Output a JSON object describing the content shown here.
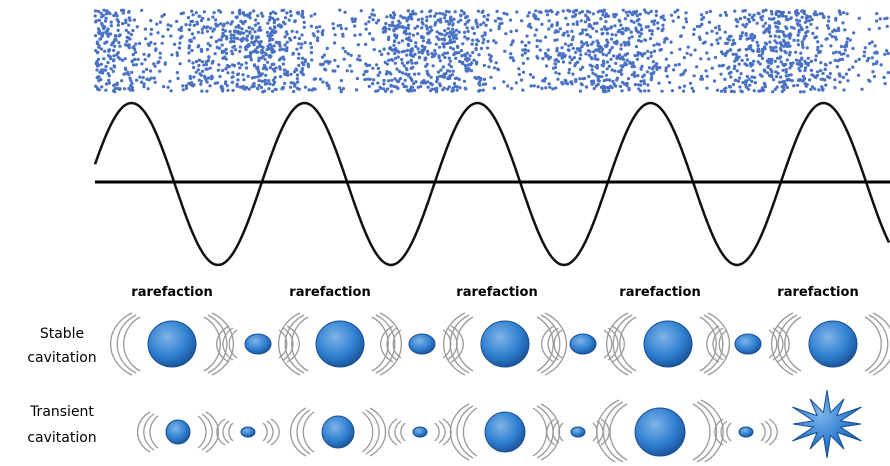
{
  "rarefaction_labels": [
    "rarefaction",
    "rarefaction",
    "rarefaction",
    "rarefaction",
    "rarefaction"
  ],
  "rows": [
    {
      "label": [
        "Stable",
        "cavitation"
      ]
    },
    {
      "label": [
        "Transient",
        "cavitation"
      ]
    }
  ]
}
